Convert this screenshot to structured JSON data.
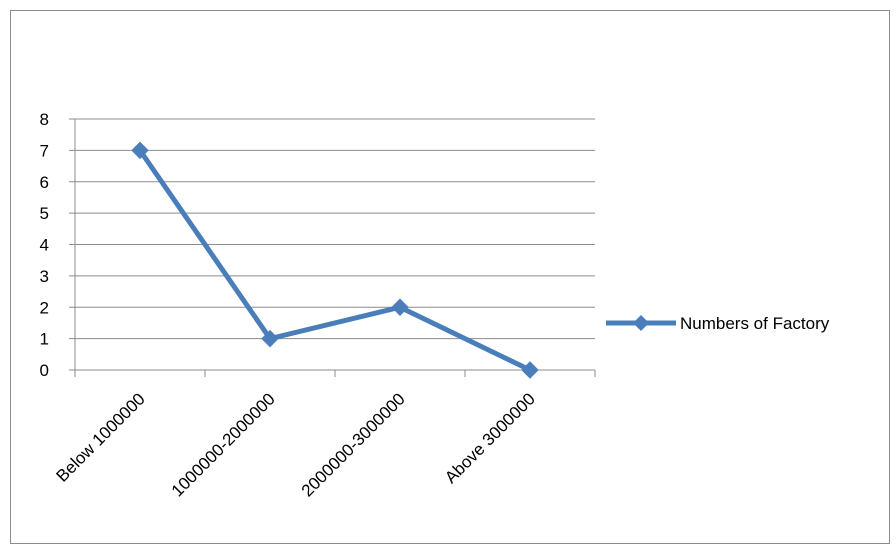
{
  "chart_data": {
    "type": "line",
    "categories": [
      "Below 1000000",
      "1000000-2000000",
      "2000000-3000000",
      "Above 3000000"
    ],
    "series": [
      {
        "name": "Numbers of Factory",
        "values": [
          7,
          1,
          2,
          0
        ],
        "color": "#4a7ebb",
        "marker": "diamond"
      }
    ],
    "ylim": [
      0,
      8
    ],
    "yticks": [
      "0",
      "1",
      "2",
      "3",
      "4",
      "5",
      "6",
      "7",
      "8"
    ],
    "grid": true,
    "legend_position": "right",
    "title": "",
    "xlabel": "",
    "ylabel": ""
  }
}
